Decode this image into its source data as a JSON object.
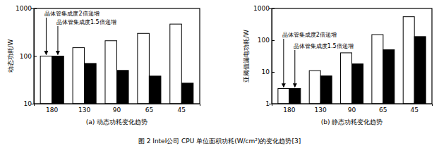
{
  "chart_data": [
    {
      "type": "bar",
      "subtitle": "(a) 动态功耗变化趋势",
      "y_label": "动态功耗/W",
      "categories": [
        "180",
        "130",
        "90",
        "65",
        "45"
      ],
      "series": [
        {
          "name": "晶体管集成度2倍递增",
          "color": "#ffffff",
          "values": [
            100,
            150,
            210,
            300,
            470
          ]
        },
        {
          "name": "晶体管集成度1.5倍递增",
          "color": "#000000",
          "values": [
            100,
            70,
            50,
            38,
            27
          ]
        }
      ],
      "log": "y",
      "ylim": [
        10,
        1000
      ],
      "yticks": [
        10,
        100,
        1000
      ]
    },
    {
      "type": "bar",
      "subtitle": "(b) 静态功耗变化趋势",
      "y_label": "亚阈值漏电功耗/W",
      "categories": [
        "180",
        "130",
        "90",
        "65",
        "45"
      ],
      "series": [
        {
          "name": "晶体管集成度2倍递增",
          "color": "#ffffff",
          "values": [
            3,
            11,
            40,
            150,
            550
          ]
        },
        {
          "name": "晶体管集成度1.5倍递增",
          "color": "#000000",
          "values": [
            3,
            7.5,
            18,
            50,
            130
          ]
        }
      ],
      "log": "y",
      "ylim": [
        1,
        1000
      ],
      "yticks": [
        1,
        10,
        100,
        1000
      ]
    }
  ],
  "caption": "图 2 Intel公司 CPU 单位面积功耗(W/cm²)的变化趋势[3]"
}
